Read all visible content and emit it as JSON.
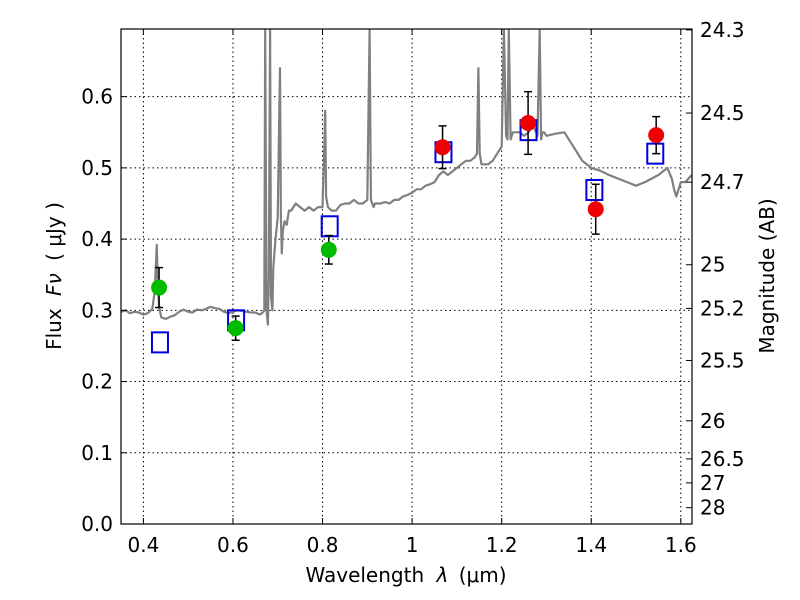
{
  "chart_data": {
    "type": "scatter",
    "xlabel": "Wavelength",
    "xlabel_symbol": "λ",
    "xlabel_unit": "(μm)",
    "ylabel": "Flux",
    "ylabel_symbol": "Fν",
    "ylabel_unit": "( μJy )",
    "y2label": "Magnitude (AB)",
    "xlim": [
      0.35,
      1.625
    ],
    "ylim": [
      0.0,
      0.695
    ],
    "grid": true,
    "x_ticks": [
      0.4,
      0.6,
      0.8,
      1.0,
      1.2,
      1.4,
      1.6
    ],
    "x_tick_labels": [
      "0.4",
      "0.6",
      "0.8",
      "1",
      "1.2",
      "1.4",
      "1.6"
    ],
    "y_ticks": [
      0.0,
      0.1,
      0.2,
      0.3,
      0.4,
      0.5,
      0.6
    ],
    "y_tick_labels": [
      "0.0",
      "0.1",
      "0.2",
      "0.3",
      "0.4",
      "0.5",
      "0.6"
    ],
    "y2_ticks": [
      {
        "label": "24.3",
        "flux": 0.6937
      },
      {
        "label": "24.5",
        "flux": 0.577
      },
      {
        "label": "24.7",
        "flux": 0.48
      },
      {
        "label": "25",
        "flux": 0.364
      },
      {
        "label": "25.2",
        "flux": 0.3027
      },
      {
        "label": "25.5",
        "flux": 0.2296
      },
      {
        "label": "26",
        "flux": 0.1449
      },
      {
        "label": "26.5",
        "flux": 0.0914
      },
      {
        "label": "27",
        "flux": 0.0577
      },
      {
        "label": "28",
        "flux": 0.0229
      }
    ],
    "series": [
      {
        "name": "Observed (green)",
        "color": "#00bb00",
        "points": [
          {
            "x": 0.435,
            "y": 0.332,
            "err": 0.028
          },
          {
            "x": 0.606,
            "y": 0.275,
            "err": 0.017
          },
          {
            "x": 0.814,
            "y": 0.385,
            "err": 0.02
          }
        ]
      },
      {
        "name": "Observed (red)",
        "color": "#ee0000",
        "points": [
          {
            "x": 1.068,
            "y": 0.529,
            "err": 0.03
          },
          {
            "x": 1.259,
            "y": 0.563,
            "err": 0.044
          },
          {
            "x": 1.41,
            "y": 0.442,
            "err": 0.035
          },
          {
            "x": 1.545,
            "y": 0.546,
            "err": 0.026
          }
        ]
      },
      {
        "name": "Model photometry",
        "color": "#0000dd",
        "points": [
          {
            "x": 0.437,
            "y": 0.255
          },
          {
            "x": 0.607,
            "y": 0.286
          },
          {
            "x": 0.816,
            "y": 0.418
          },
          {
            "x": 1.07,
            "y": 0.522
          },
          {
            "x": 1.26,
            "y": 0.553
          },
          {
            "x": 1.407,
            "y": 0.469
          },
          {
            "x": 1.543,
            "y": 0.52
          }
        ]
      }
    ],
    "spectrum": {
      "name": "Model spectrum",
      "color": "#808080",
      "x": [
        0.35,
        0.36,
        0.37,
        0.38,
        0.39,
        0.4,
        0.41,
        0.42,
        0.425,
        0.43,
        0.432,
        0.435,
        0.44,
        0.45,
        0.46,
        0.47,
        0.48,
        0.49,
        0.5,
        0.51,
        0.52,
        0.53,
        0.54,
        0.55,
        0.56,
        0.57,
        0.58,
        0.59,
        0.6,
        0.61,
        0.62,
        0.63,
        0.64,
        0.65,
        0.66,
        0.665,
        0.67,
        0.672,
        0.675,
        0.678,
        0.68,
        0.683,
        0.685,
        0.688,
        0.69,
        0.695,
        0.7,
        0.705,
        0.707,
        0.709,
        0.711,
        0.715,
        0.72,
        0.725,
        0.73,
        0.74,
        0.75,
        0.76,
        0.77,
        0.78,
        0.79,
        0.8,
        0.804,
        0.806,
        0.808,
        0.812,
        0.82,
        0.83,
        0.84,
        0.85,
        0.86,
        0.87,
        0.88,
        0.89,
        0.9,
        0.905,
        0.908,
        0.911,
        0.914,
        0.917,
        0.92,
        0.93,
        0.94,
        0.95,
        0.96,
        0.97,
        0.98,
        0.99,
        1.0,
        1.01,
        1.02,
        1.03,
        1.04,
        1.05,
        1.06,
        1.07,
        1.08,
        1.09,
        1.1,
        1.11,
        1.12,
        1.13,
        1.14,
        1.145,
        1.148,
        1.151,
        1.155,
        1.16,
        1.17,
        1.18,
        1.19,
        1.2,
        1.205,
        1.21,
        1.213,
        1.216,
        1.22,
        1.225,
        1.23,
        1.24,
        1.25,
        1.26,
        1.27,
        1.28,
        1.285,
        1.288,
        1.291,
        1.295,
        1.3,
        1.32,
        1.34,
        1.36,
        1.38,
        1.4,
        1.42,
        1.44,
        1.46,
        1.48,
        1.5,
        1.52,
        1.55,
        1.57,
        1.58,
        1.585,
        1.59,
        1.595,
        1.6,
        1.61,
        1.62,
        1.625
      ],
      "y": [
        0.298,
        0.3,
        0.296,
        0.298,
        0.297,
        0.294,
        0.296,
        0.302,
        0.325,
        0.392,
        0.34,
        0.305,
        0.29,
        0.288,
        0.291,
        0.293,
        0.298,
        0.301,
        0.298,
        0.297,
        0.301,
        0.3,
        0.302,
        0.305,
        0.303,
        0.302,
        0.298,
        0.296,
        0.298,
        0.3,
        0.299,
        0.298,
        0.297,
        0.297,
        0.294,
        0.296,
        0.3,
        0.695,
        0.3,
        0.28,
        0.35,
        0.695,
        0.32,
        0.3,
        0.36,
        0.4,
        0.43,
        0.64,
        0.43,
        0.38,
        0.41,
        0.425,
        0.42,
        0.44,
        0.44,
        0.45,
        0.445,
        0.44,
        0.445,
        0.44,
        0.445,
        0.445,
        0.53,
        0.58,
        0.46,
        0.445,
        0.44,
        0.44,
        0.448,
        0.45,
        0.45,
        0.455,
        0.45,
        0.45,
        0.455,
        0.695,
        0.455,
        0.45,
        0.445,
        0.45,
        0.45,
        0.45,
        0.452,
        0.45,
        0.455,
        0.455,
        0.46,
        0.462,
        0.465,
        0.47,
        0.47,
        0.475,
        0.477,
        0.48,
        0.49,
        0.495,
        0.49,
        0.495,
        0.5,
        0.505,
        0.51,
        0.51,
        0.515,
        0.52,
        0.64,
        0.52,
        0.505,
        0.505,
        0.505,
        0.51,
        0.52,
        0.53,
        0.695,
        0.545,
        0.54,
        0.695,
        0.54,
        0.55,
        0.55,
        0.55,
        0.545,
        0.55,
        0.56,
        0.545,
        0.695,
        0.54,
        0.55,
        0.55,
        0.545,
        0.548,
        0.55,
        0.53,
        0.51,
        0.5,
        0.496,
        0.49,
        0.485,
        0.48,
        0.475,
        0.48,
        0.49,
        0.5,
        0.485,
        0.47,
        0.46,
        0.47,
        0.48,
        0.48,
        0.487,
        0.49
      ]
    }
  }
}
